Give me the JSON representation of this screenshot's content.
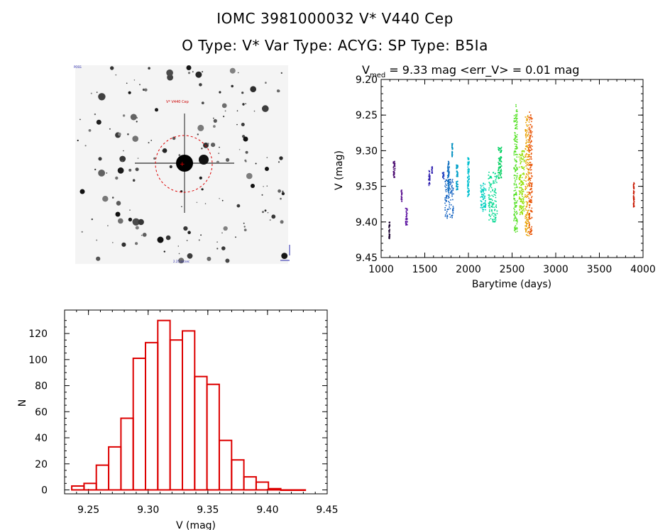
{
  "header": {
    "title_line1": "IOMC 3981000032    V* V440 Cep",
    "title_line2": "O Type: V*   Var Type: ACYG:   SP Type: B5Ia"
  },
  "sky_image": {
    "target_label": "V* V440 Cep",
    "corner_label": "POSS",
    "bottom_label": "2.25 arcsec"
  },
  "chart_data": [
    {
      "type": "scatter",
      "title_prefix": "V",
      "title_subscript": "med",
      "title_rest": " = 9.33 mag <err_V> = 0.01 mag",
      "xlabel": "Barytime (days)",
      "ylabel": "V (mag)",
      "xlim": [
        1000,
        4000
      ],
      "ylim": [
        9.45,
        9.2
      ],
      "y_inverted": true,
      "xticks": [
        1000,
        1500,
        2000,
        2500,
        3000,
        3500,
        4000
      ],
      "yticks": [
        "9.20",
        "9.25",
        "9.30",
        "9.35",
        "9.40",
        "9.45"
      ],
      "grid": false,
      "color_scale": "time-ordered rainbow (purple to red)",
      "clusters": [
        {
          "x": [
            1090,
            1100
          ],
          "y": [
            9.4,
            9.425
          ],
          "color": "#1a0030"
        },
        {
          "x": [
            1140,
            1160
          ],
          "y": [
            9.315,
            9.34
          ],
          "color": "#4a0a70"
        },
        {
          "x": [
            1230,
            1240
          ],
          "y": [
            9.355,
            9.372
          ],
          "color": "#5a1090"
        },
        {
          "x": [
            1280,
            1300
          ],
          "y": [
            9.38,
            9.405
          ],
          "color": "#5a10a0"
        },
        {
          "x": [
            1545,
            1560
          ],
          "y": [
            9.328,
            9.35
          ],
          "color": "#3020b0"
        },
        {
          "x": [
            1580,
            1590
          ],
          "y": [
            9.322,
            9.332
          ],
          "color": "#3020b0"
        },
        {
          "x": [
            1700,
            1720
          ],
          "y": [
            9.33,
            9.34
          ],
          "color": "#2040c0"
        },
        {
          "x": [
            1730,
            1830
          ],
          "y": [
            9.34,
            9.395
          ],
          "color": "#1060c0"
        },
        {
          "x": [
            1760,
            1780
          ],
          "y": [
            9.315,
            9.36
          ],
          "color": "#1070c0"
        },
        {
          "x": [
            1810,
            1820
          ],
          "y": [
            9.29,
            9.31
          ],
          "color": "#0090c0"
        },
        {
          "x": [
            1860,
            1880
          ],
          "y": [
            9.32,
            9.355
          ],
          "color": "#00a0c8"
        },
        {
          "x": [
            1990,
            2010
          ],
          "y": [
            9.31,
            9.365
          ],
          "color": "#00c0d0"
        },
        {
          "x": [
            2140,
            2200
          ],
          "y": [
            9.345,
            9.385
          ],
          "color": "#00d0c0"
        },
        {
          "x": [
            2230,
            2330
          ],
          "y": [
            9.33,
            9.4
          ],
          "color": "#00d890"
        },
        {
          "x": [
            2340,
            2380
          ],
          "y": [
            9.295,
            9.34
          ],
          "color": "#00d060"
        },
        {
          "x": [
            2520,
            2560
          ],
          "y": [
            9.235,
            9.415
          ],
          "color": "#50e020"
        },
        {
          "x": [
            2580,
            2640
          ],
          "y": [
            9.3,
            9.39
          ],
          "color": "#90e000"
        },
        {
          "x": [
            2650,
            2700
          ],
          "y": [
            9.25,
            9.42
          ],
          "color": "#e8a000"
        },
        {
          "x": [
            2690,
            2730
          ],
          "y": [
            9.245,
            9.418
          ],
          "color": "#e85000"
        },
        {
          "x": [
            3890,
            3900
          ],
          "y": [
            9.345,
            9.38
          ],
          "color": "#c81800"
        }
      ]
    },
    {
      "type": "bar",
      "subtype": "histogram",
      "xlabel": "V (mag)",
      "ylabel": "N",
      "xlim": [
        9.23,
        9.45
      ],
      "ylim": [
        -3,
        138
      ],
      "xticks": [
        "9.25",
        "9.30",
        "9.35",
        "9.40",
        "9.45"
      ],
      "yticks": [
        "0",
        "20",
        "40",
        "60",
        "80",
        "100",
        "120"
      ],
      "bin_width": 0.0103,
      "bin_starts": [
        9.236,
        9.2463,
        9.2566,
        9.2669,
        9.2772,
        9.2875,
        9.2978,
        9.3081,
        9.3184,
        9.3287,
        9.339,
        9.3493,
        9.3596,
        9.3699,
        9.3802,
        9.3905,
        9.4008,
        9.4111,
        9.4214
      ],
      "values": [
        3,
        5,
        19,
        33,
        55,
        101,
        113,
        130,
        115,
        122,
        87,
        81,
        38,
        23,
        10,
        6,
        1,
        0,
        0
      ],
      "bar_color": "#dd0000"
    }
  ]
}
